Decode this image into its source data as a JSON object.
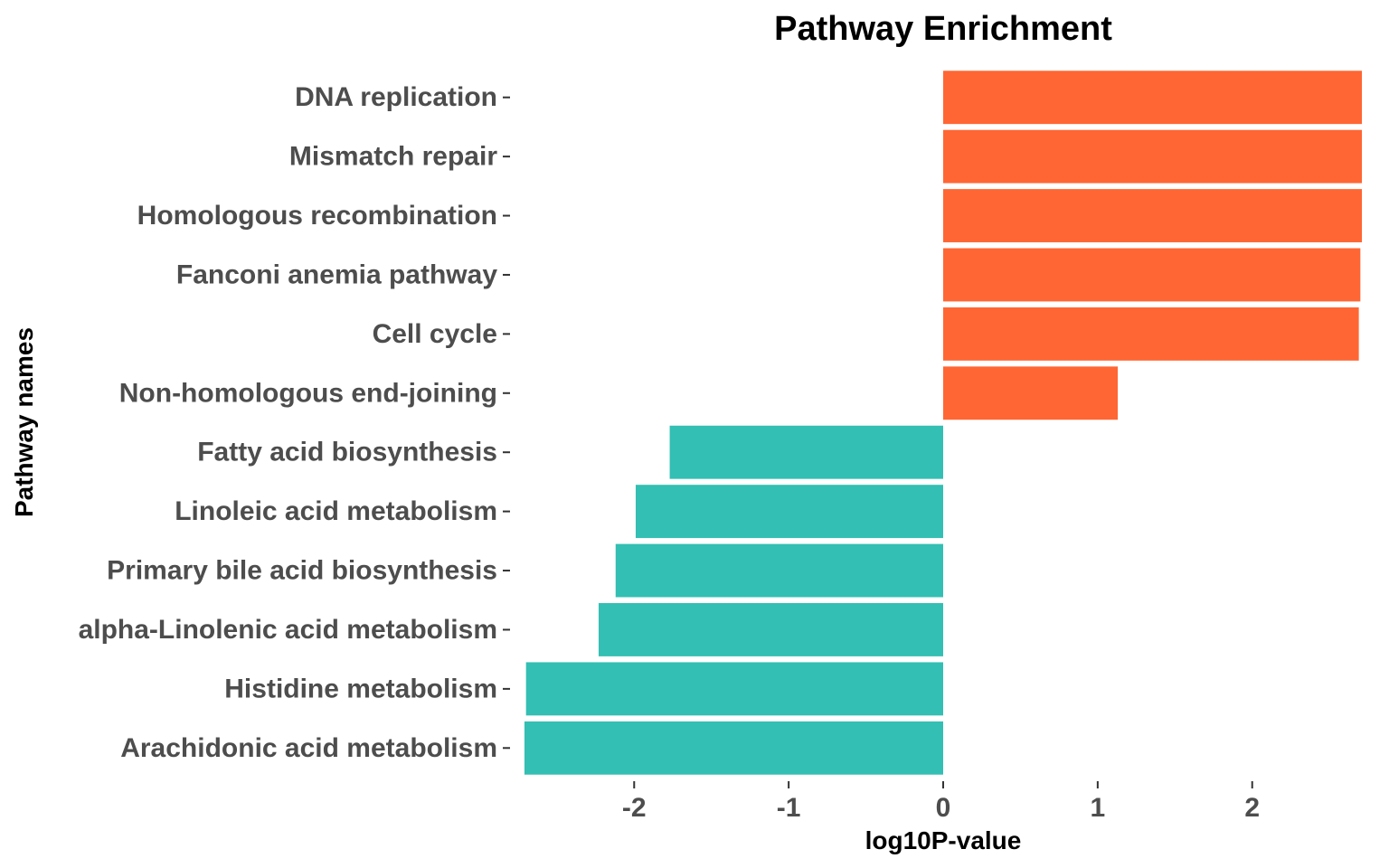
{
  "chart_data": {
    "type": "bar",
    "orientation": "horizontal",
    "title": "Pathway Enrichment",
    "xlabel": "log10P-value",
    "ylabel": "Pathway names",
    "xlim": [
      -2.78,
      2.78
    ],
    "xticks": [
      -2,
      -1,
      0,
      1,
      2
    ],
    "xtick_labels": [
      "-2",
      "-1",
      "0",
      "1",
      "2"
    ],
    "grid": false,
    "legend": "none",
    "colors": {
      "positive": "#ff6633",
      "negative": "#33bfb3"
    },
    "categories": [
      "DNA replication",
      "Mismatch repair",
      "Homologous recombination",
      "Fanconi anemia pathway",
      "Cell cycle",
      "Non-homologous end-joining",
      "Fatty acid biosynthesis",
      "Linoleic acid metabolism",
      "Primary bile acid biosynthesis",
      "alpha-Linolenic acid metabolism",
      "Histidine metabolism",
      "Arachidonic acid metabolism"
    ],
    "values": [
      2.71,
      2.71,
      2.71,
      2.7,
      2.69,
      1.13,
      -1.77,
      -1.99,
      -2.12,
      -2.23,
      -2.7,
      -2.71
    ]
  }
}
